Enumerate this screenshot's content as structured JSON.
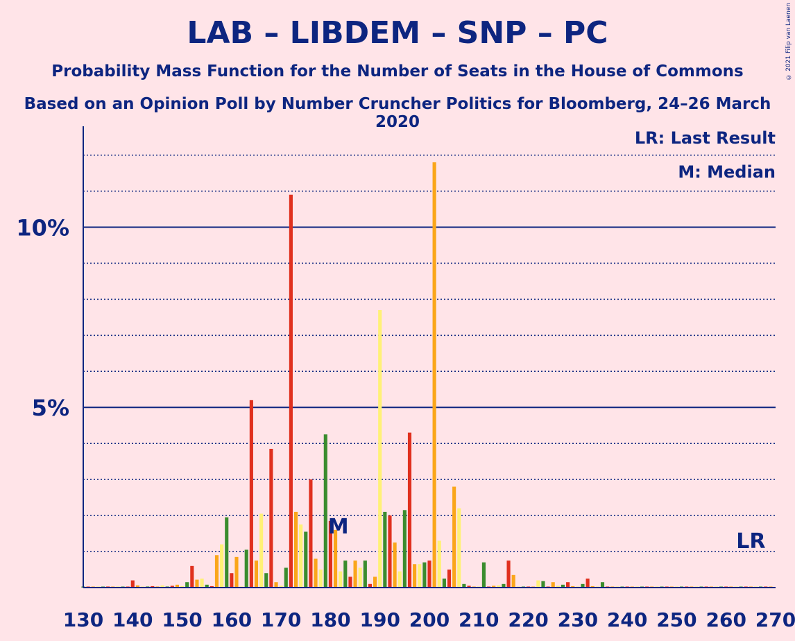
{
  "header": {
    "title": "LAB – LIBDEM – SNP – PC",
    "subtitle": "Probability Mass Function for the Number of Seats in the House of Commons",
    "subtitle2": "Based on an Opinion Poll by Number Cruncher Politics for Bloomberg, 24–26 March 2020"
  },
  "legend": {
    "lr_text": "LR: Last Result",
    "m_text": "M: Median"
  },
  "copyright": "© 2021 Filip van Laenen",
  "colors": {
    "background": "#ffe4e8",
    "axis": "#0d2580",
    "green": "#3a8c2e",
    "red": "#e0301e",
    "orange": "#faa61a",
    "yellow": "#fff176"
  },
  "chart_data": {
    "type": "bar",
    "xlabel": "",
    "ylabel": "",
    "xlim": [
      130,
      270
    ],
    "ylim": [
      0,
      12.8
    ],
    "x_ticks": [
      "130",
      "140",
      "150",
      "160",
      "170",
      "180",
      "190",
      "200",
      "210",
      "220",
      "230",
      "240",
      "250",
      "260",
      "270"
    ],
    "y_ticks": [
      {
        "value": 5,
        "label": "5%"
      },
      {
        "value": 10,
        "label": "10%"
      }
    ],
    "median_seat": 182,
    "median_label": "M",
    "last_result_seat": 265,
    "last_result_label": "LR",
    "bars": [
      {
        "seat": 130,
        "value": 0.02,
        "color": "green"
      },
      {
        "seat": 131,
        "value": 0.02,
        "color": "red"
      },
      {
        "seat": 132,
        "value": 0.02,
        "color": "orange"
      },
      {
        "seat": 133,
        "value": 0.02,
        "color": "yellow"
      },
      {
        "seat": 134,
        "value": 0.02,
        "color": "green"
      },
      {
        "seat": 135,
        "value": 0.03,
        "color": "red"
      },
      {
        "seat": 136,
        "value": 0.02,
        "color": "orange"
      },
      {
        "seat": 137,
        "value": 0.03,
        "color": "yellow"
      },
      {
        "seat": 138,
        "value": 0.02,
        "color": "green"
      },
      {
        "seat": 139,
        "value": 0.02,
        "color": "red"
      },
      {
        "seat": 140,
        "value": 0.2,
        "color": "red"
      },
      {
        "seat": 141,
        "value": 0.06,
        "color": "orange"
      },
      {
        "seat": 142,
        "value": 0.02,
        "color": "yellow"
      },
      {
        "seat": 143,
        "value": 0.03,
        "color": "green"
      },
      {
        "seat": 144,
        "value": 0.04,
        "color": "red"
      },
      {
        "seat": 145,
        "value": 0.03,
        "color": "orange"
      },
      {
        "seat": 146,
        "value": 0.06,
        "color": "yellow"
      },
      {
        "seat": 147,
        "value": 0.03,
        "color": "green"
      },
      {
        "seat": 148,
        "value": 0.05,
        "color": "red"
      },
      {
        "seat": 149,
        "value": 0.08,
        "color": "orange"
      },
      {
        "seat": 150,
        "value": 0.04,
        "color": "yellow"
      },
      {
        "seat": 151,
        "value": 0.15,
        "color": "green"
      },
      {
        "seat": 152,
        "value": 0.6,
        "color": "red"
      },
      {
        "seat": 153,
        "value": 0.22,
        "color": "orange"
      },
      {
        "seat": 154,
        "value": 0.25,
        "color": "yellow"
      },
      {
        "seat": 155,
        "value": 0.08,
        "color": "green"
      },
      {
        "seat": 156,
        "value": 0.04,
        "color": "red"
      },
      {
        "seat": 157,
        "value": 0.9,
        "color": "orange"
      },
      {
        "seat": 158,
        "value": 1.2,
        "color": "yellow"
      },
      {
        "seat": 159,
        "value": 1.95,
        "color": "green"
      },
      {
        "seat": 160,
        "value": 0.4,
        "color": "red"
      },
      {
        "seat": 161,
        "value": 0.85,
        "color": "orange"
      },
      {
        "seat": 162,
        "value": 0.02,
        "color": "yellow"
      },
      {
        "seat": 163,
        "value": 1.05,
        "color": "green"
      },
      {
        "seat": 164,
        "value": 5.2,
        "color": "red"
      },
      {
        "seat": 165,
        "value": 0.75,
        "color": "orange"
      },
      {
        "seat": 166,
        "value": 2.05,
        "color": "yellow"
      },
      {
        "seat": 167,
        "value": 0.4,
        "color": "green"
      },
      {
        "seat": 168,
        "value": 3.85,
        "color": "red"
      },
      {
        "seat": 169,
        "value": 0.15,
        "color": "orange"
      },
      {
        "seat": 170,
        "value": 0.05,
        "color": "yellow"
      },
      {
        "seat": 171,
        "value": 0.55,
        "color": "green"
      },
      {
        "seat": 172,
        "value": 10.9,
        "color": "red"
      },
      {
        "seat": 173,
        "value": 2.1,
        "color": "orange"
      },
      {
        "seat": 174,
        "value": 1.75,
        "color": "yellow"
      },
      {
        "seat": 175,
        "value": 1.55,
        "color": "green"
      },
      {
        "seat": 176,
        "value": 3.0,
        "color": "red"
      },
      {
        "seat": 177,
        "value": 0.8,
        "color": "orange"
      },
      {
        "seat": 178,
        "value": 0.5,
        "color": "yellow"
      },
      {
        "seat": 179,
        "value": 4.25,
        "color": "green"
      },
      {
        "seat": 180,
        "value": 1.85,
        "color": "red"
      },
      {
        "seat": 181,
        "value": 1.6,
        "color": "orange"
      },
      {
        "seat": 182,
        "value": 0.45,
        "color": "yellow"
      },
      {
        "seat": 183,
        "value": 0.75,
        "color": "green"
      },
      {
        "seat": 184,
        "value": 0.3,
        "color": "red"
      },
      {
        "seat": 185,
        "value": 0.75,
        "color": "orange"
      },
      {
        "seat": 186,
        "value": 0.55,
        "color": "yellow"
      },
      {
        "seat": 187,
        "value": 0.75,
        "color": "green"
      },
      {
        "seat": 188,
        "value": 0.1,
        "color": "red"
      },
      {
        "seat": 189,
        "value": 0.3,
        "color": "orange"
      },
      {
        "seat": 190,
        "value": 7.7,
        "color": "yellow"
      },
      {
        "seat": 191,
        "value": 2.1,
        "color": "green"
      },
      {
        "seat": 192,
        "value": 2.0,
        "color": "red"
      },
      {
        "seat": 193,
        "value": 1.25,
        "color": "orange"
      },
      {
        "seat": 194,
        "value": 0.45,
        "color": "yellow"
      },
      {
        "seat": 195,
        "value": 2.15,
        "color": "green"
      },
      {
        "seat": 196,
        "value": 4.3,
        "color": "red"
      },
      {
        "seat": 197,
        "value": 0.65,
        "color": "orange"
      },
      {
        "seat": 198,
        "value": 0.65,
        "color": "yellow"
      },
      {
        "seat": 199,
        "value": 0.7,
        "color": "green"
      },
      {
        "seat": 200,
        "value": 0.75,
        "color": "red"
      },
      {
        "seat": 201,
        "value": 11.8,
        "color": "orange"
      },
      {
        "seat": 202,
        "value": 1.3,
        "color": "yellow"
      },
      {
        "seat": 203,
        "value": 0.25,
        "color": "green"
      },
      {
        "seat": 204,
        "value": 0.5,
        "color": "red"
      },
      {
        "seat": 205,
        "value": 2.8,
        "color": "orange"
      },
      {
        "seat": 206,
        "value": 2.2,
        "color": "yellow"
      },
      {
        "seat": 207,
        "value": 0.1,
        "color": "green"
      },
      {
        "seat": 208,
        "value": 0.05,
        "color": "red"
      },
      {
        "seat": 209,
        "value": 0.02,
        "color": "orange"
      },
      {
        "seat": 210,
        "value": 0.02,
        "color": "yellow"
      },
      {
        "seat": 211,
        "value": 0.7,
        "color": "green"
      },
      {
        "seat": 212,
        "value": 0.02,
        "color": "red"
      },
      {
        "seat": 213,
        "value": 0.05,
        "color": "orange"
      },
      {
        "seat": 214,
        "value": 0.06,
        "color": "yellow"
      },
      {
        "seat": 215,
        "value": 0.1,
        "color": "green"
      },
      {
        "seat": 216,
        "value": 0.75,
        "color": "red"
      },
      {
        "seat": 217,
        "value": 0.35,
        "color": "orange"
      },
      {
        "seat": 218,
        "value": 0.02,
        "color": "yellow"
      },
      {
        "seat": 219,
        "value": 0.02,
        "color": "green"
      },
      {
        "seat": 220,
        "value": 0.02,
        "color": "red"
      },
      {
        "seat": 221,
        "value": 0.02,
        "color": "orange"
      },
      {
        "seat": 222,
        "value": 0.2,
        "color": "yellow"
      },
      {
        "seat": 223,
        "value": 0.18,
        "color": "green"
      },
      {
        "seat": 224,
        "value": 0.02,
        "color": "red"
      },
      {
        "seat": 225,
        "value": 0.15,
        "color": "orange"
      },
      {
        "seat": 226,
        "value": 0.05,
        "color": "yellow"
      },
      {
        "seat": 227,
        "value": 0.08,
        "color": "green"
      },
      {
        "seat": 228,
        "value": 0.15,
        "color": "red"
      },
      {
        "seat": 229,
        "value": 0.04,
        "color": "orange"
      },
      {
        "seat": 230,
        "value": 0.02,
        "color": "yellow"
      },
      {
        "seat": 231,
        "value": 0.1,
        "color": "green"
      },
      {
        "seat": 232,
        "value": 0.25,
        "color": "red"
      },
      {
        "seat": 233,
        "value": 0.04,
        "color": "orange"
      },
      {
        "seat": 234,
        "value": 0.02,
        "color": "yellow"
      },
      {
        "seat": 235,
        "value": 0.15,
        "color": "green"
      },
      {
        "seat": 236,
        "value": 0.02,
        "color": "red"
      },
      {
        "seat": 237,
        "value": 0.02,
        "color": "orange"
      },
      {
        "seat": 238,
        "value": 0.02,
        "color": "yellow"
      },
      {
        "seat": 239,
        "value": 0.02,
        "color": "green"
      },
      {
        "seat": 240,
        "value": 0.02,
        "color": "red"
      },
      {
        "seat": 241,
        "value": 0.02,
        "color": "orange"
      },
      {
        "seat": 242,
        "value": 0.02,
        "color": "yellow"
      },
      {
        "seat": 243,
        "value": 0.02,
        "color": "green"
      },
      {
        "seat": 244,
        "value": 0.02,
        "color": "red"
      },
      {
        "seat": 245,
        "value": 0.02,
        "color": "orange"
      },
      {
        "seat": 246,
        "value": 0.02,
        "color": "yellow"
      },
      {
        "seat": 247,
        "value": 0.02,
        "color": "green"
      },
      {
        "seat": 248,
        "value": 0.02,
        "color": "red"
      },
      {
        "seat": 249,
        "value": 0.02,
        "color": "orange"
      },
      {
        "seat": 250,
        "value": 0.02,
        "color": "yellow"
      },
      {
        "seat": 251,
        "value": 0.02,
        "color": "green"
      },
      {
        "seat": 252,
        "value": 0.02,
        "color": "red"
      },
      {
        "seat": 253,
        "value": 0.02,
        "color": "orange"
      },
      {
        "seat": 254,
        "value": 0.02,
        "color": "yellow"
      },
      {
        "seat": 255,
        "value": 0.02,
        "color": "green"
      },
      {
        "seat": 256,
        "value": 0.02,
        "color": "red"
      },
      {
        "seat": 257,
        "value": 0.02,
        "color": "orange"
      },
      {
        "seat": 258,
        "value": 0.02,
        "color": "yellow"
      },
      {
        "seat": 259,
        "value": 0.02,
        "color": "green"
      },
      {
        "seat": 260,
        "value": 0.02,
        "color": "red"
      },
      {
        "seat": 261,
        "value": 0.02,
        "color": "orange"
      },
      {
        "seat": 262,
        "value": 0.02,
        "color": "yellow"
      },
      {
        "seat": 263,
        "value": 0.02,
        "color": "green"
      },
      {
        "seat": 264,
        "value": 0.02,
        "color": "red"
      },
      {
        "seat": 265,
        "value": 0.02,
        "color": "orange"
      },
      {
        "seat": 266,
        "value": 0.02,
        "color": "yellow"
      },
      {
        "seat": 267,
        "value": 0.02,
        "color": "green"
      },
      {
        "seat": 268,
        "value": 0.02,
        "color": "red"
      },
      {
        "seat": 269,
        "value": 0.02,
        "color": "orange"
      }
    ]
  }
}
